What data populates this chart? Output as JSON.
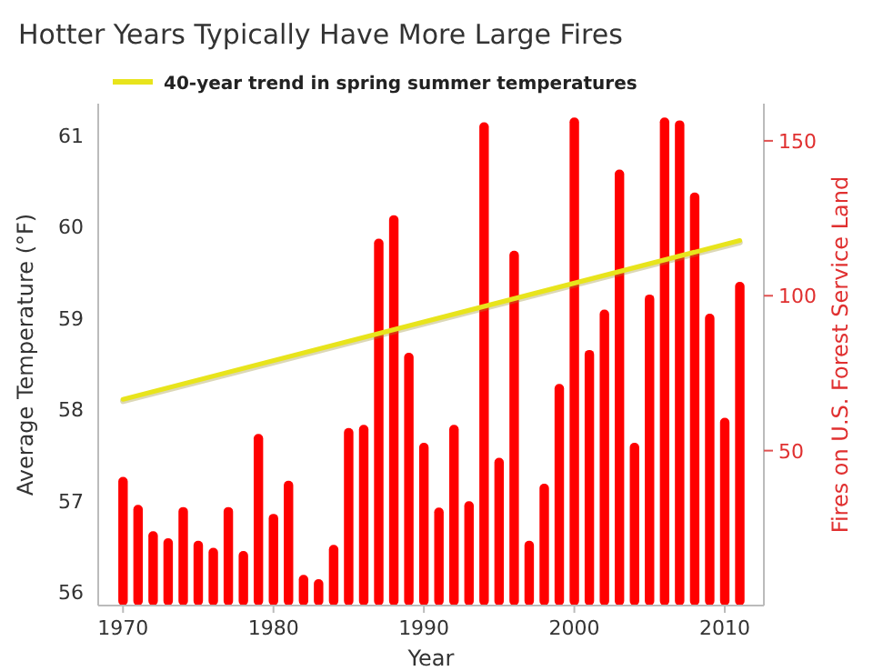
{
  "chart_data": {
    "type": "bar",
    "title": "Hotter Years Typically Have More Large Fires",
    "xlabel": "Year",
    "ylabel": "Average Temperature (°F)",
    "y2label": "Fires on U.S. Forest Service Land",
    "xlim": [
      1968.35,
      2012.6
    ],
    "xticks": [
      1970,
      1980,
      1990,
      2000,
      2010
    ],
    "ylim": [
      55.85,
      61.35
    ],
    "yticks": [
      56,
      57,
      58,
      59,
      60,
      61
    ],
    "y2lim": [
      0,
      162
    ],
    "y2ticks": [
      50,
      100,
      150
    ],
    "grid": false,
    "legend": "top left",
    "marker": "none",
    "line_style": "solid",
    "series": [
      {
        "axis": "y2",
        "color": "#ff0000",
        "x": [
          1970,
          1971,
          1972,
          1973,
          1974,
          1975,
          1976,
          1977,
          1978,
          1979,
          1980,
          1981,
          1982,
          1983,
          1984,
          1985,
          1986,
          1987,
          1988,
          1989,
          1990,
          1991,
          1992,
          1993,
          1994,
          1995,
          1996,
          1997,
          1998,
          1999,
          2000,
          2001,
          2002,
          2003,
          2004,
          2005,
          2006,
          2007,
          2008,
          2009,
          2010,
          2011
        ],
        "values": [
          41.5,
          32.5,
          24,
          21.7,
          31.8,
          20.9,
          18.6,
          31.8,
          17.6,
          55.4,
          29.6,
          40.3,
          9.9,
          8.5,
          19.6,
          57.3,
          58.3,
          118.4,
          126,
          81.6,
          52.5,
          31.6,
          58.3,
          33.7,
          156,
          47.7,
          114.5,
          20.9,
          39.3,
          71.5,
          157.5,
          82.5,
          95.5,
          140.7,
          52.5,
          100.4,
          157.5,
          156.6,
          133.3,
          94.2,
          60.6,
          104.5
        ]
      },
      {
        "type": "line",
        "name": "40-year trend in spring summer temperatures",
        "color": "#e8e41c",
        "x": [
          1970,
          2011
        ],
        "values": [
          58.11,
          59.85
        ]
      }
    ]
  }
}
